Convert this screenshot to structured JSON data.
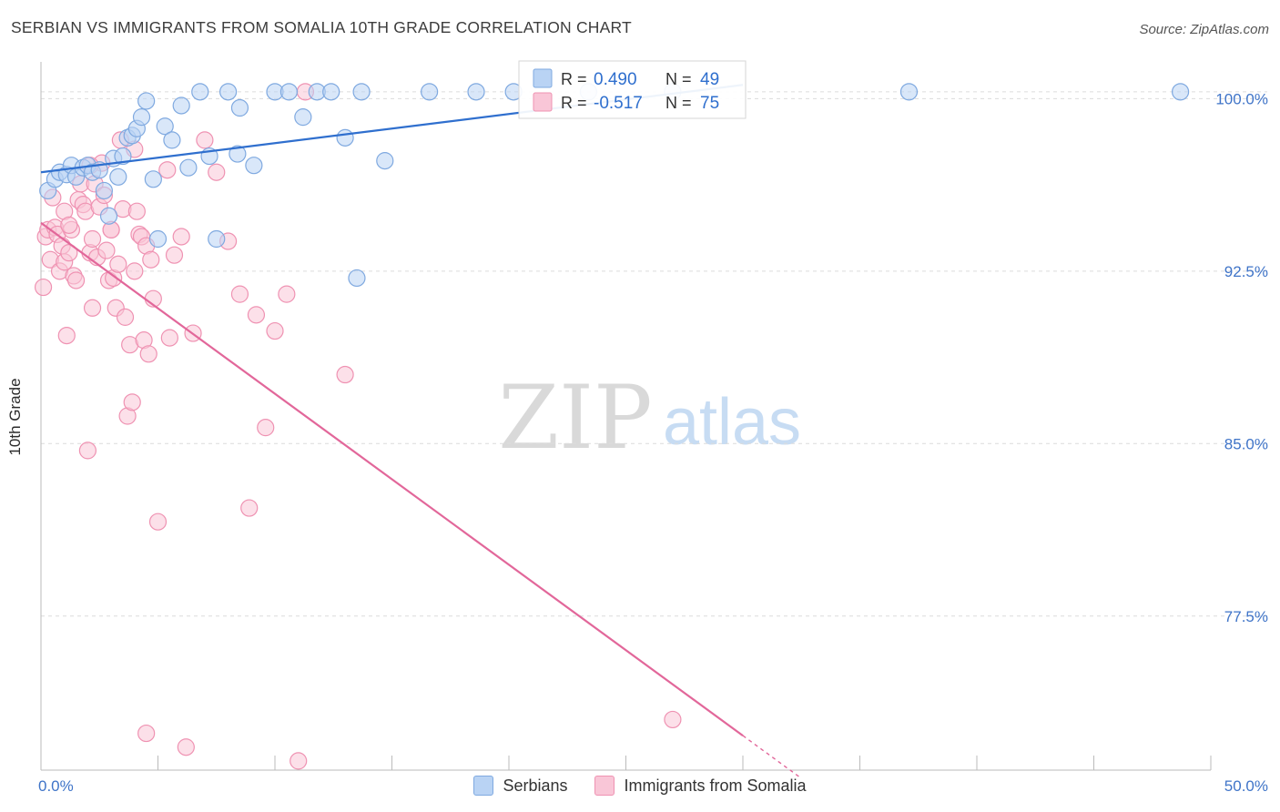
{
  "header": {
    "title": "SERBIAN VS IMMIGRANTS FROM SOMALIA 10TH GRADE CORRELATION CHART",
    "source": "Source: ZipAtlas.com"
  },
  "colors": {
    "blue": "#2f6fce",
    "blue_fill": "#b9d3f4",
    "pink": "#e2679a",
    "pink_fill": "#f9c6d7",
    "axis_label": "#3f74c8",
    "grid": "#dcdcdc"
  },
  "watermark": {
    "zip": "ZIP",
    "atlas": "atlas"
  },
  "chart_data": {
    "type": "scatter",
    "title": "SERBIAN VS IMMIGRANTS FROM SOMALIA 10TH GRADE CORRELATION CHART",
    "xlabel": "",
    "ylabel": "10th Grade",
    "xlim": [
      0,
      50
    ],
    "ylim": [
      70.8,
      101.6
    ],
    "x_tick_labels": [
      "0.0%",
      "50.0%"
    ],
    "y_ticks": [
      77.5,
      85.0,
      92.5,
      100.0
    ],
    "y_tick_labels": [
      "77.5%",
      "85.0%",
      "92.5%",
      "100.0%"
    ],
    "grid": true,
    "legend_position": "bottom",
    "stats_box": [
      {
        "r_label": "R =",
        "r_value": "0.490",
        "n_label": "N =",
        "n_value": "49"
      },
      {
        "r_label": "R =",
        "r_value": "-0.517",
        "n_label": "N =",
        "n_value": "75"
      }
    ],
    "series": [
      {
        "name": "Serbians",
        "color": "#2f6fce",
        "trend": {
          "x0": 0.0,
          "y0": 96.8,
          "x1": 30.0,
          "y1": 100.6
        },
        "points": [
          [
            0.3,
            96.0
          ],
          [
            0.6,
            96.5
          ],
          [
            0.8,
            96.8
          ],
          [
            1.1,
            96.7
          ],
          [
            1.3,
            97.1
          ],
          [
            1.5,
            96.6
          ],
          [
            1.8,
            97.0
          ],
          [
            2.0,
            97.1
          ],
          [
            2.2,
            96.8
          ],
          [
            2.5,
            96.9
          ],
          [
            2.7,
            96.0
          ],
          [
            2.9,
            94.9
          ],
          [
            3.1,
            97.4
          ],
          [
            3.3,
            96.6
          ],
          [
            3.5,
            97.5
          ],
          [
            3.7,
            98.3
          ],
          [
            3.9,
            98.4
          ],
          [
            4.1,
            98.7
          ],
          [
            4.3,
            99.2
          ],
          [
            4.5,
            99.9
          ],
          [
            5.0,
            93.9
          ],
          [
            5.3,
            98.8
          ],
          [
            5.6,
            98.2
          ],
          [
            6.0,
            99.7
          ],
          [
            6.3,
            97.0
          ],
          [
            6.8,
            100.3
          ],
          [
            7.2,
            97.5
          ],
          [
            7.5,
            93.9
          ],
          [
            8.0,
            100.3
          ],
          [
            8.5,
            99.6
          ],
          [
            9.1,
            97.1
          ],
          [
            10.0,
            100.3
          ],
          [
            10.6,
            100.3
          ],
          [
            11.2,
            99.2
          ],
          [
            11.8,
            100.3
          ],
          [
            12.4,
            100.3
          ],
          [
            13.0,
            98.3
          ],
          [
            13.5,
            92.2
          ],
          [
            13.7,
            100.3
          ],
          [
            14.7,
            97.3
          ],
          [
            16.6,
            100.3
          ],
          [
            18.6,
            100.3
          ],
          [
            20.2,
            100.3
          ],
          [
            23.4,
            100.3
          ],
          [
            27.0,
            100.3
          ],
          [
            37.1,
            100.3
          ],
          [
            48.7,
            100.3
          ],
          [
            4.8,
            96.5
          ],
          [
            8.4,
            97.6
          ]
        ]
      },
      {
        "name": "Immigrants from Somalia",
        "color": "#e2679a",
        "trend": {
          "x0": 0.0,
          "y0": 94.6,
          "x1": 30.0,
          "y1": 72.3,
          "dash_to_x": 32.5
        },
        "points": [
          [
            0.1,
            91.8
          ],
          [
            0.2,
            94.0
          ],
          [
            0.3,
            94.3
          ],
          [
            0.4,
            93.0
          ],
          [
            0.5,
            95.7
          ],
          [
            0.6,
            94.4
          ],
          [
            0.7,
            94.1
          ],
          [
            0.8,
            92.5
          ],
          [
            0.9,
            93.6
          ],
          [
            1.0,
            92.9
          ],
          [
            1.1,
            89.7
          ],
          [
            1.2,
            93.3
          ],
          [
            1.3,
            94.3
          ],
          [
            1.4,
            92.3
          ],
          [
            1.5,
            92.1
          ],
          [
            1.6,
            95.6
          ],
          [
            1.7,
            96.3
          ],
          [
            1.8,
            95.4
          ],
          [
            1.9,
            95.1
          ],
          [
            2.0,
            84.7
          ],
          [
            2.1,
            93.3
          ],
          [
            2.2,
            93.9
          ],
          [
            2.3,
            96.3
          ],
          [
            2.4,
            93.1
          ],
          [
            2.5,
            95.3
          ],
          [
            2.2,
            90.9
          ],
          [
            2.6,
            97.2
          ],
          [
            2.7,
            95.8
          ],
          [
            2.8,
            93.4
          ],
          [
            2.9,
            92.1
          ],
          [
            3.0,
            94.3
          ],
          [
            3.1,
            92.2
          ],
          [
            3.2,
            90.9
          ],
          [
            3.3,
            92.8
          ],
          [
            3.4,
            98.2
          ],
          [
            3.5,
            95.2
          ],
          [
            3.6,
            90.5
          ],
          [
            3.7,
            86.2
          ],
          [
            3.8,
            89.3
          ],
          [
            3.9,
            86.8
          ],
          [
            4.0,
            92.5
          ],
          [
            4.1,
            95.1
          ],
          [
            4.2,
            94.1
          ],
          [
            4.3,
            94.0
          ],
          [
            4.4,
            89.5
          ],
          [
            4.5,
            93.6
          ],
          [
            4.6,
            88.9
          ],
          [
            4.7,
            93.0
          ],
          [
            4.8,
            91.3
          ],
          [
            5.0,
            81.6
          ],
          [
            4.5,
            72.4
          ],
          [
            5.5,
            89.6
          ],
          [
            5.7,
            93.2
          ],
          [
            6.0,
            94.0
          ],
          [
            6.2,
            71.8
          ],
          [
            6.5,
            89.8
          ],
          [
            7.0,
            98.2
          ],
          [
            7.5,
            96.8
          ],
          [
            8.0,
            93.8
          ],
          [
            8.5,
            91.5
          ],
          [
            8.9,
            82.2
          ],
          [
            9.2,
            90.6
          ],
          [
            9.6,
            85.7
          ],
          [
            10.0,
            89.9
          ],
          [
            10.5,
            91.5
          ],
          [
            11.0,
            71.2
          ],
          [
            11.3,
            100.3
          ],
          [
            13.0,
            88.0
          ],
          [
            27.0,
            73.0
          ],
          [
            1.0,
            95.1
          ],
          [
            1.2,
            94.5
          ],
          [
            3.0,
            94.3
          ],
          [
            5.4,
            96.9
          ],
          [
            4.0,
            97.8
          ],
          [
            2.1,
            97.1
          ]
        ]
      }
    ]
  },
  "legend": {
    "items": [
      {
        "label": "Serbians"
      },
      {
        "label": "Immigrants from Somalia"
      }
    ]
  }
}
